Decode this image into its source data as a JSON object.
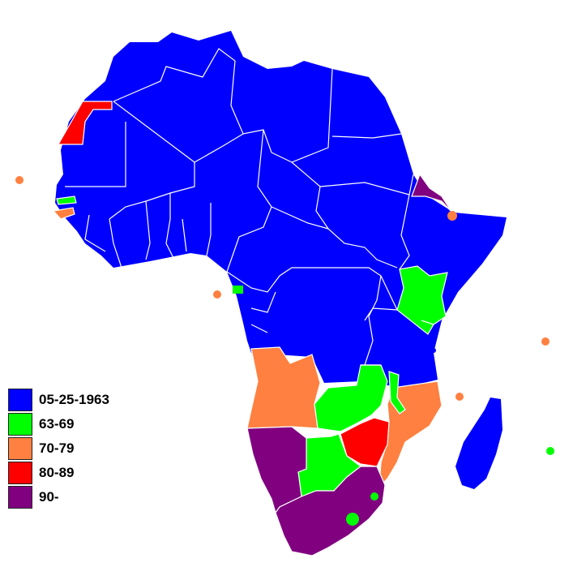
{
  "legend": {
    "items": [
      {
        "label": "05-25-1963",
        "color": "#0000FF"
      },
      {
        "label": "63-69",
        "color": "#00FF00"
      },
      {
        "label": "70-79",
        "color": "#FF8040"
      },
      {
        "label": "80-89",
        "color": "#FF0000"
      },
      {
        "label": "90-",
        "color": "#800080"
      }
    ]
  },
  "colors": {
    "background": "#FFFFFF",
    "border": "#FFFFFF"
  }
}
